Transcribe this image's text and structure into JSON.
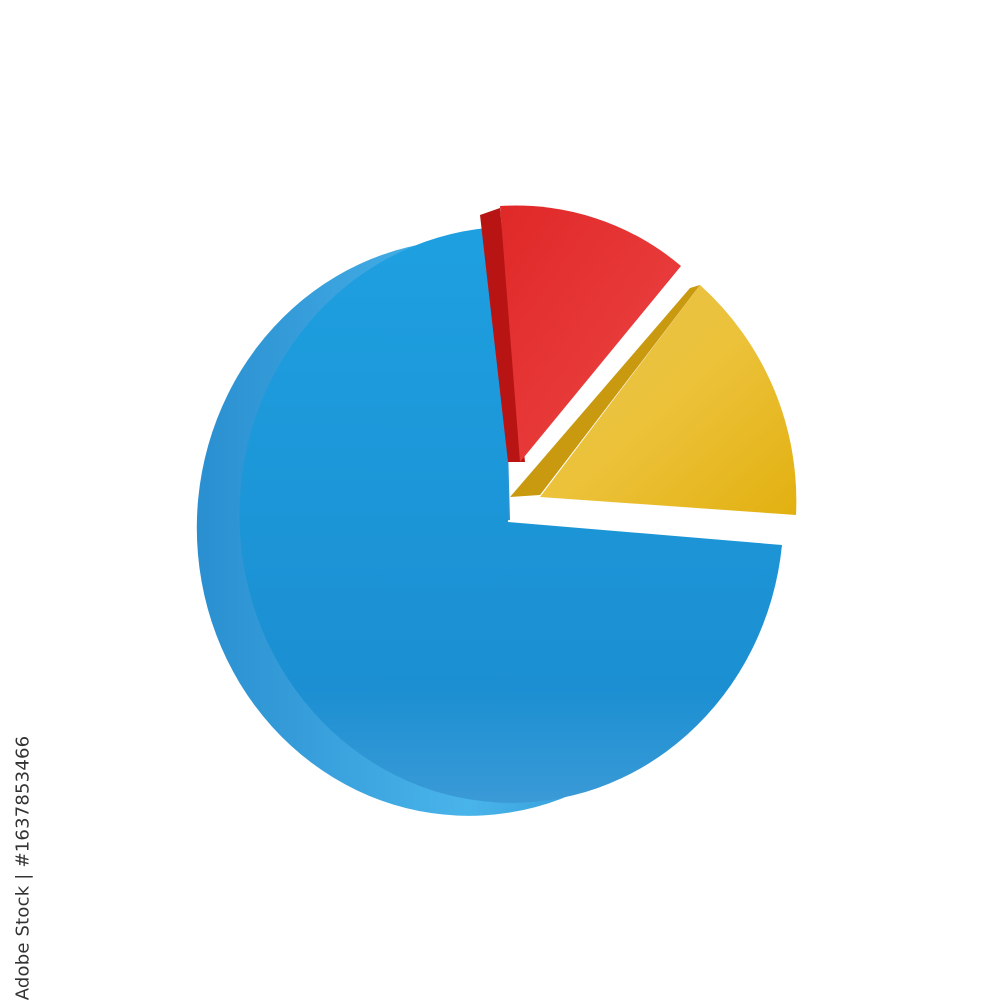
{
  "credit": {
    "brand": "Adobe Stock",
    "separator": "|",
    "id": "#1637853466"
  },
  "colors": {
    "large_slice": "#1e95d6",
    "red_slice": "#dc2020",
    "yellow_slice": "#e8b81a",
    "background": "#ffffff"
  }
}
